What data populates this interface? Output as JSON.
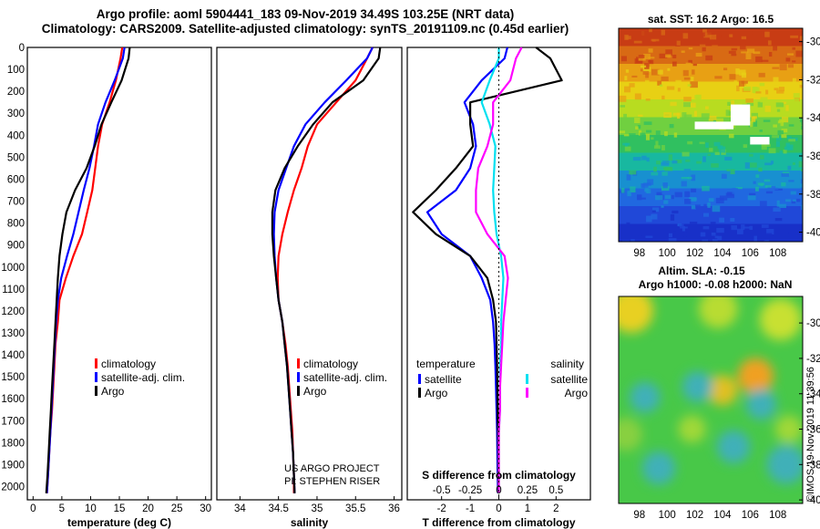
{
  "header": {
    "title_line1": "Argo profile: aoml 5904441_183 09-Nov-2019 34.49S 103.25E (NRT data)",
    "title_line2": "Climatology: CARS2009. Satellite-adjusted climatology: synTS_20191109.nc (0.45d earlier)"
  },
  "colors": {
    "climatology": "#ff0000",
    "satellite": "#0000ff",
    "argo": "#000000",
    "sal_satellite": "#00e0f0",
    "sal_argo": "#ff00ff"
  },
  "credit": "©IMOS 19-Nov-2019 11:39:56",
  "chart_data": [
    {
      "type": "line",
      "name": "temperature-profile",
      "xlabel": "temperature (deg C)",
      "xlim": [
        -1,
        31
      ],
      "ylim": [
        0,
        2060
      ],
      "y_inverted": true,
      "xticks": [
        0,
        5,
        10,
        15,
        20,
        25,
        30
      ],
      "yticks": [
        0,
        100,
        200,
        300,
        400,
        500,
        600,
        700,
        800,
        900,
        1000,
        1100,
        1200,
        1300,
        1400,
        1500,
        1600,
        1700,
        1800,
        1900,
        2000
      ],
      "legend": [
        "climatology",
        "satellite-adj. clim.",
        "Argo"
      ],
      "series": [
        {
          "name": "climatology",
          "color": "#ff0000",
          "x": [
            15.5,
            15.2,
            14.4,
            13.3,
            12.0,
            11.3,
            10.8,
            10.3,
            9.4,
            8.5,
            7.0,
            5.7,
            4.6,
            4.3,
            3.9,
            3.7,
            3.5,
            3.3,
            3.0,
            2.8,
            2.6,
            2.4
          ],
          "y": [
            0,
            50,
            150,
            250,
            350,
            450,
            550,
            650,
            750,
            850,
            950,
            1050,
            1150,
            1250,
            1350,
            1450,
            1550,
            1650,
            1750,
            1850,
            1950,
            2030
          ]
        },
        {
          "name": "satellite-adj. clim.",
          "color": "#0000ff",
          "x": [
            15.9,
            15.6,
            14.2,
            12.6,
            11.3,
            10.6,
            9.8,
            8.8,
            7.9,
            7.0,
            5.9,
            4.9,
            4.3,
            4.0,
            3.8,
            3.6,
            3.4,
            3.2,
            3.0,
            2.8,
            2.6,
            2.4
          ],
          "y": [
            0,
            50,
            150,
            250,
            350,
            450,
            550,
            650,
            750,
            850,
            950,
            1050,
            1150,
            1250,
            1350,
            1450,
            1550,
            1650,
            1750,
            1850,
            1950,
            2030
          ]
        },
        {
          "name": "Argo",
          "color": "#000000",
          "x": [
            16.8,
            16.6,
            15.4,
            13.6,
            11.9,
            10.7,
            9.3,
            7.3,
            5.8,
            5.1,
            4.6,
            4.3,
            4.1,
            3.9,
            3.7,
            3.5,
            3.3,
            3.1,
            2.9,
            2.7,
            2.5,
            2.3
          ],
          "y": [
            0,
            50,
            150,
            250,
            350,
            450,
            550,
            650,
            750,
            850,
            950,
            1050,
            1150,
            1250,
            1350,
            1450,
            1550,
            1650,
            1750,
            1850,
            1950,
            2030
          ]
        }
      ]
    },
    {
      "type": "line",
      "name": "salinity-profile",
      "xlabel": "salinity",
      "xlim": [
        33.7,
        36.1
      ],
      "ylim": [
        0,
        2060
      ],
      "y_inverted": true,
      "xticks": [
        34,
        34.5,
        35,
        35.5,
        36
      ],
      "xtick_labels": [
        "34",
        "34.5",
        "35",
        "35.5",
        "36"
      ],
      "legend": [
        "climatology",
        "satellite-adj. clim.",
        "Argo"
      ],
      "annotation": [
        "US ARGO PROJECT",
        "PI: STEPHEN RISER"
      ],
      "series": [
        {
          "name": "climatology",
          "color": "#ff0000",
          "x": [
            35.72,
            35.65,
            35.5,
            35.25,
            35.0,
            34.88,
            34.8,
            34.7,
            34.62,
            34.55,
            34.5,
            34.49,
            34.5,
            34.55,
            34.59,
            34.62,
            34.64,
            34.66,
            34.68,
            34.69,
            34.7,
            34.7
          ],
          "y": [
            0,
            50,
            150,
            250,
            350,
            450,
            550,
            650,
            750,
            850,
            950,
            1050,
            1150,
            1250,
            1350,
            1450,
            1550,
            1650,
            1750,
            1850,
            1950,
            2030
          ]
        },
        {
          "name": "satellite-adj. clim.",
          "color": "#0000ff",
          "x": [
            35.72,
            35.65,
            35.38,
            35.1,
            34.85,
            34.7,
            34.6,
            34.5,
            34.45,
            34.44,
            34.45,
            34.47,
            34.5,
            34.55,
            34.58,
            34.61,
            34.63,
            34.65,
            34.67,
            34.69,
            34.7,
            34.71
          ],
          "y": [
            0,
            50,
            150,
            250,
            350,
            450,
            550,
            650,
            750,
            850,
            950,
            1050,
            1150,
            1250,
            1350,
            1450,
            1550,
            1650,
            1750,
            1850,
            1950,
            2030
          ]
        },
        {
          "name": "Argo",
          "color": "#000000",
          "x": [
            35.82,
            35.8,
            35.6,
            35.2,
            34.95,
            34.75,
            34.58,
            34.46,
            34.42,
            34.42,
            34.44,
            34.47,
            34.5,
            34.55,
            34.58,
            34.61,
            34.63,
            34.65,
            34.67,
            34.69,
            34.7,
            34.71
          ],
          "y": [
            0,
            50,
            150,
            250,
            350,
            450,
            550,
            650,
            750,
            850,
            950,
            1050,
            1150,
            1250,
            1350,
            1450,
            1550,
            1650,
            1750,
            1850,
            1950,
            2030
          ]
        }
      ]
    },
    {
      "type": "line",
      "name": "difference-profile",
      "xlabel": "T difference from climatology",
      "xlabel_top": "S difference from climatology",
      "xlim": [
        -3.2,
        3.2
      ],
      "ylim": [
        0,
        2060
      ],
      "y_inverted": true,
      "xticks": [
        -2,
        -1,
        0,
        1,
        2
      ],
      "s_ticks": [
        -0.5,
        -0.25,
        0,
        0.25,
        0.5
      ],
      "s_tick_labels": [
        "-0.5",
        "-0.25",
        "0",
        "0.25",
        "0.5"
      ],
      "legend_titles": [
        "temperature",
        "salinity"
      ],
      "legend": [
        "satellite",
        "Argo",
        "satellite",
        "Argo"
      ],
      "series": [
        {
          "name": "temperature satellite",
          "color": "#0000ff",
          "x": [
            0.3,
            0.2,
            -0.6,
            -1.2,
            -0.9,
            -0.8,
            -1.0,
            -1.5,
            -2.5,
            -2.0,
            -1.0,
            -0.6,
            -0.3,
            -0.2,
            -0.15,
            -0.12,
            -0.1,
            -0.08,
            -0.06,
            -0.05,
            -0.04,
            -0.03
          ],
          "y": [
            0,
            50,
            150,
            250,
            350,
            450,
            550,
            650,
            750,
            850,
            950,
            1050,
            1150,
            1250,
            1350,
            1450,
            1550,
            1650,
            1750,
            1850,
            1950,
            2030
          ]
        },
        {
          "name": "temperature Argo",
          "color": "#000000",
          "x": [
            1.3,
            1.8,
            2.2,
            -1.0,
            -1.0,
            -0.9,
            -1.5,
            -2.2,
            -3.0,
            -2.2,
            -1.0,
            -0.4,
            -0.2,
            -0.1,
            -0.08,
            -0.06,
            -0.05,
            -0.04,
            -0.03,
            -0.02,
            -0.02,
            -0.01
          ],
          "y": [
            0,
            50,
            150,
            250,
            350,
            450,
            550,
            650,
            750,
            850,
            950,
            1050,
            1150,
            1250,
            1350,
            1450,
            1550,
            1650,
            1750,
            1850,
            1950,
            2030
          ]
        },
        {
          "name": "salinity satellite",
          "color": "#00e0f0",
          "x": [
            0.0,
            0.0,
            -0.08,
            -0.15,
            -0.08,
            -0.03,
            -0.04,
            -0.05,
            -0.04,
            -0.02,
            0.02,
            0.04,
            0.03,
            0.02,
            0.02,
            0.01,
            0.01,
            0.01,
            0.0,
            0.0,
            0.0,
            0.0
          ],
          "y": [
            0,
            50,
            150,
            250,
            350,
            450,
            550,
            650,
            750,
            850,
            950,
            1050,
            1150,
            1250,
            1350,
            1450,
            1550,
            1650,
            1750,
            1850,
            1950,
            2030
          ]
        },
        {
          "name": "salinity Argo",
          "color": "#ff00ff",
          "x": [
            0.2,
            0.15,
            0.1,
            -0.05,
            -0.05,
            -0.1,
            -0.18,
            -0.2,
            -0.2,
            -0.1,
            0.05,
            0.08,
            0.06,
            0.04,
            0.03,
            0.02,
            0.01,
            0.01,
            0.0,
            0.0,
            0.0,
            0.0
          ],
          "y": [
            0,
            50,
            150,
            250,
            350,
            450,
            550,
            650,
            750,
            850,
            950,
            1050,
            1150,
            1250,
            1350,
            1450,
            1550,
            1650,
            1750,
            1850,
            1950,
            2030
          ]
        }
      ]
    },
    {
      "type": "heatmap",
      "name": "sst-map",
      "title": "sat. SST: 16.2 Argo: 16.5",
      "xlim": [
        96.5,
        109.8
      ],
      "ylim": [
        -40.5,
        -29.3
      ],
      "xticks": [
        98,
        100,
        102,
        104,
        106,
        108
      ],
      "yticks": [
        -30,
        -32,
        -34,
        -36,
        -38,
        -40
      ],
      "yvalues": [
        -29.5,
        -30.5,
        -31.5,
        -32.5,
        -33.5,
        -34.5,
        -35.5,
        -36.5,
        -37.5,
        -38.5,
        -39.5,
        -40.3
      ],
      "color_bands": [
        "#c83c14",
        "#d86a14",
        "#e8a014",
        "#e8d014",
        "#b8dc20",
        "#70d040",
        "#30c060",
        "#18b8a0",
        "#1890d0",
        "#2068e0",
        "#2048d8",
        "#1830c8"
      ],
      "masked": [
        {
          "lon": [
            102.0,
            104.8
          ],
          "lat": [
            -34.6,
            -34.2
          ]
        },
        {
          "lon": [
            104.6,
            106.0
          ],
          "lat": [
            -34.4,
            -33.3
          ]
        },
        {
          "lon": [
            106.0,
            107.4
          ],
          "lat": [
            -35.4,
            -35.0
          ]
        }
      ]
    },
    {
      "type": "heatmap",
      "name": "sla-map",
      "title_line1": "Altim. SLA: -0.15",
      "title_line2": "Argo h1000: -0.08 h2000: NaN",
      "xlim": [
        96.5,
        109.8
      ],
      "ylim": [
        -40.2,
        -28.5
      ],
      "xticks": [
        98,
        100,
        102,
        104,
        106,
        108
      ],
      "yticks": [
        -30,
        -32,
        -34,
        -36,
        -38,
        -40
      ],
      "background": "#48c848",
      "blobs": [
        {
          "lon": 97.4,
          "lat": -29.3,
          "r": 1.6,
          "color": "#e8d020"
        },
        {
          "lon": 103.7,
          "lat": -29.2,
          "r": 1.4,
          "color": "#b8dc30"
        },
        {
          "lon": 108.2,
          "lat": -29.8,
          "r": 1.5,
          "color": "#c8e030"
        },
        {
          "lon": 106.4,
          "lat": -33.0,
          "r": 1.3,
          "color": "#f0a020"
        },
        {
          "lon": 104.0,
          "lat": -33.8,
          "r": 1.1,
          "color": "#e0c020"
        },
        {
          "lon": 98.4,
          "lat": -34.2,
          "r": 1.1,
          "color": "#40b0b8"
        },
        {
          "lon": 102.2,
          "lat": -33.6,
          "r": 1.1,
          "color": "#40b0b8"
        },
        {
          "lon": 106.8,
          "lat": -34.6,
          "r": 1.1,
          "color": "#40b0b8"
        },
        {
          "lon": 99.4,
          "lat": -38.2,
          "r": 1.2,
          "color": "#40b0b8"
        },
        {
          "lon": 104.8,
          "lat": -37.0,
          "r": 1.2,
          "color": "#40b0b8"
        },
        {
          "lon": 108.6,
          "lat": -38.0,
          "r": 1.4,
          "color": "#40b0b8"
        },
        {
          "lon": 101.8,
          "lat": -36.0,
          "r": 1.0,
          "color": "#a0d838"
        },
        {
          "lon": 97.0,
          "lat": -36.3,
          "r": 1.2,
          "color": "#88d040"
        },
        {
          "lon": 108.8,
          "lat": -36.0,
          "r": 1.0,
          "color": "#a0d838"
        }
      ]
    }
  ]
}
